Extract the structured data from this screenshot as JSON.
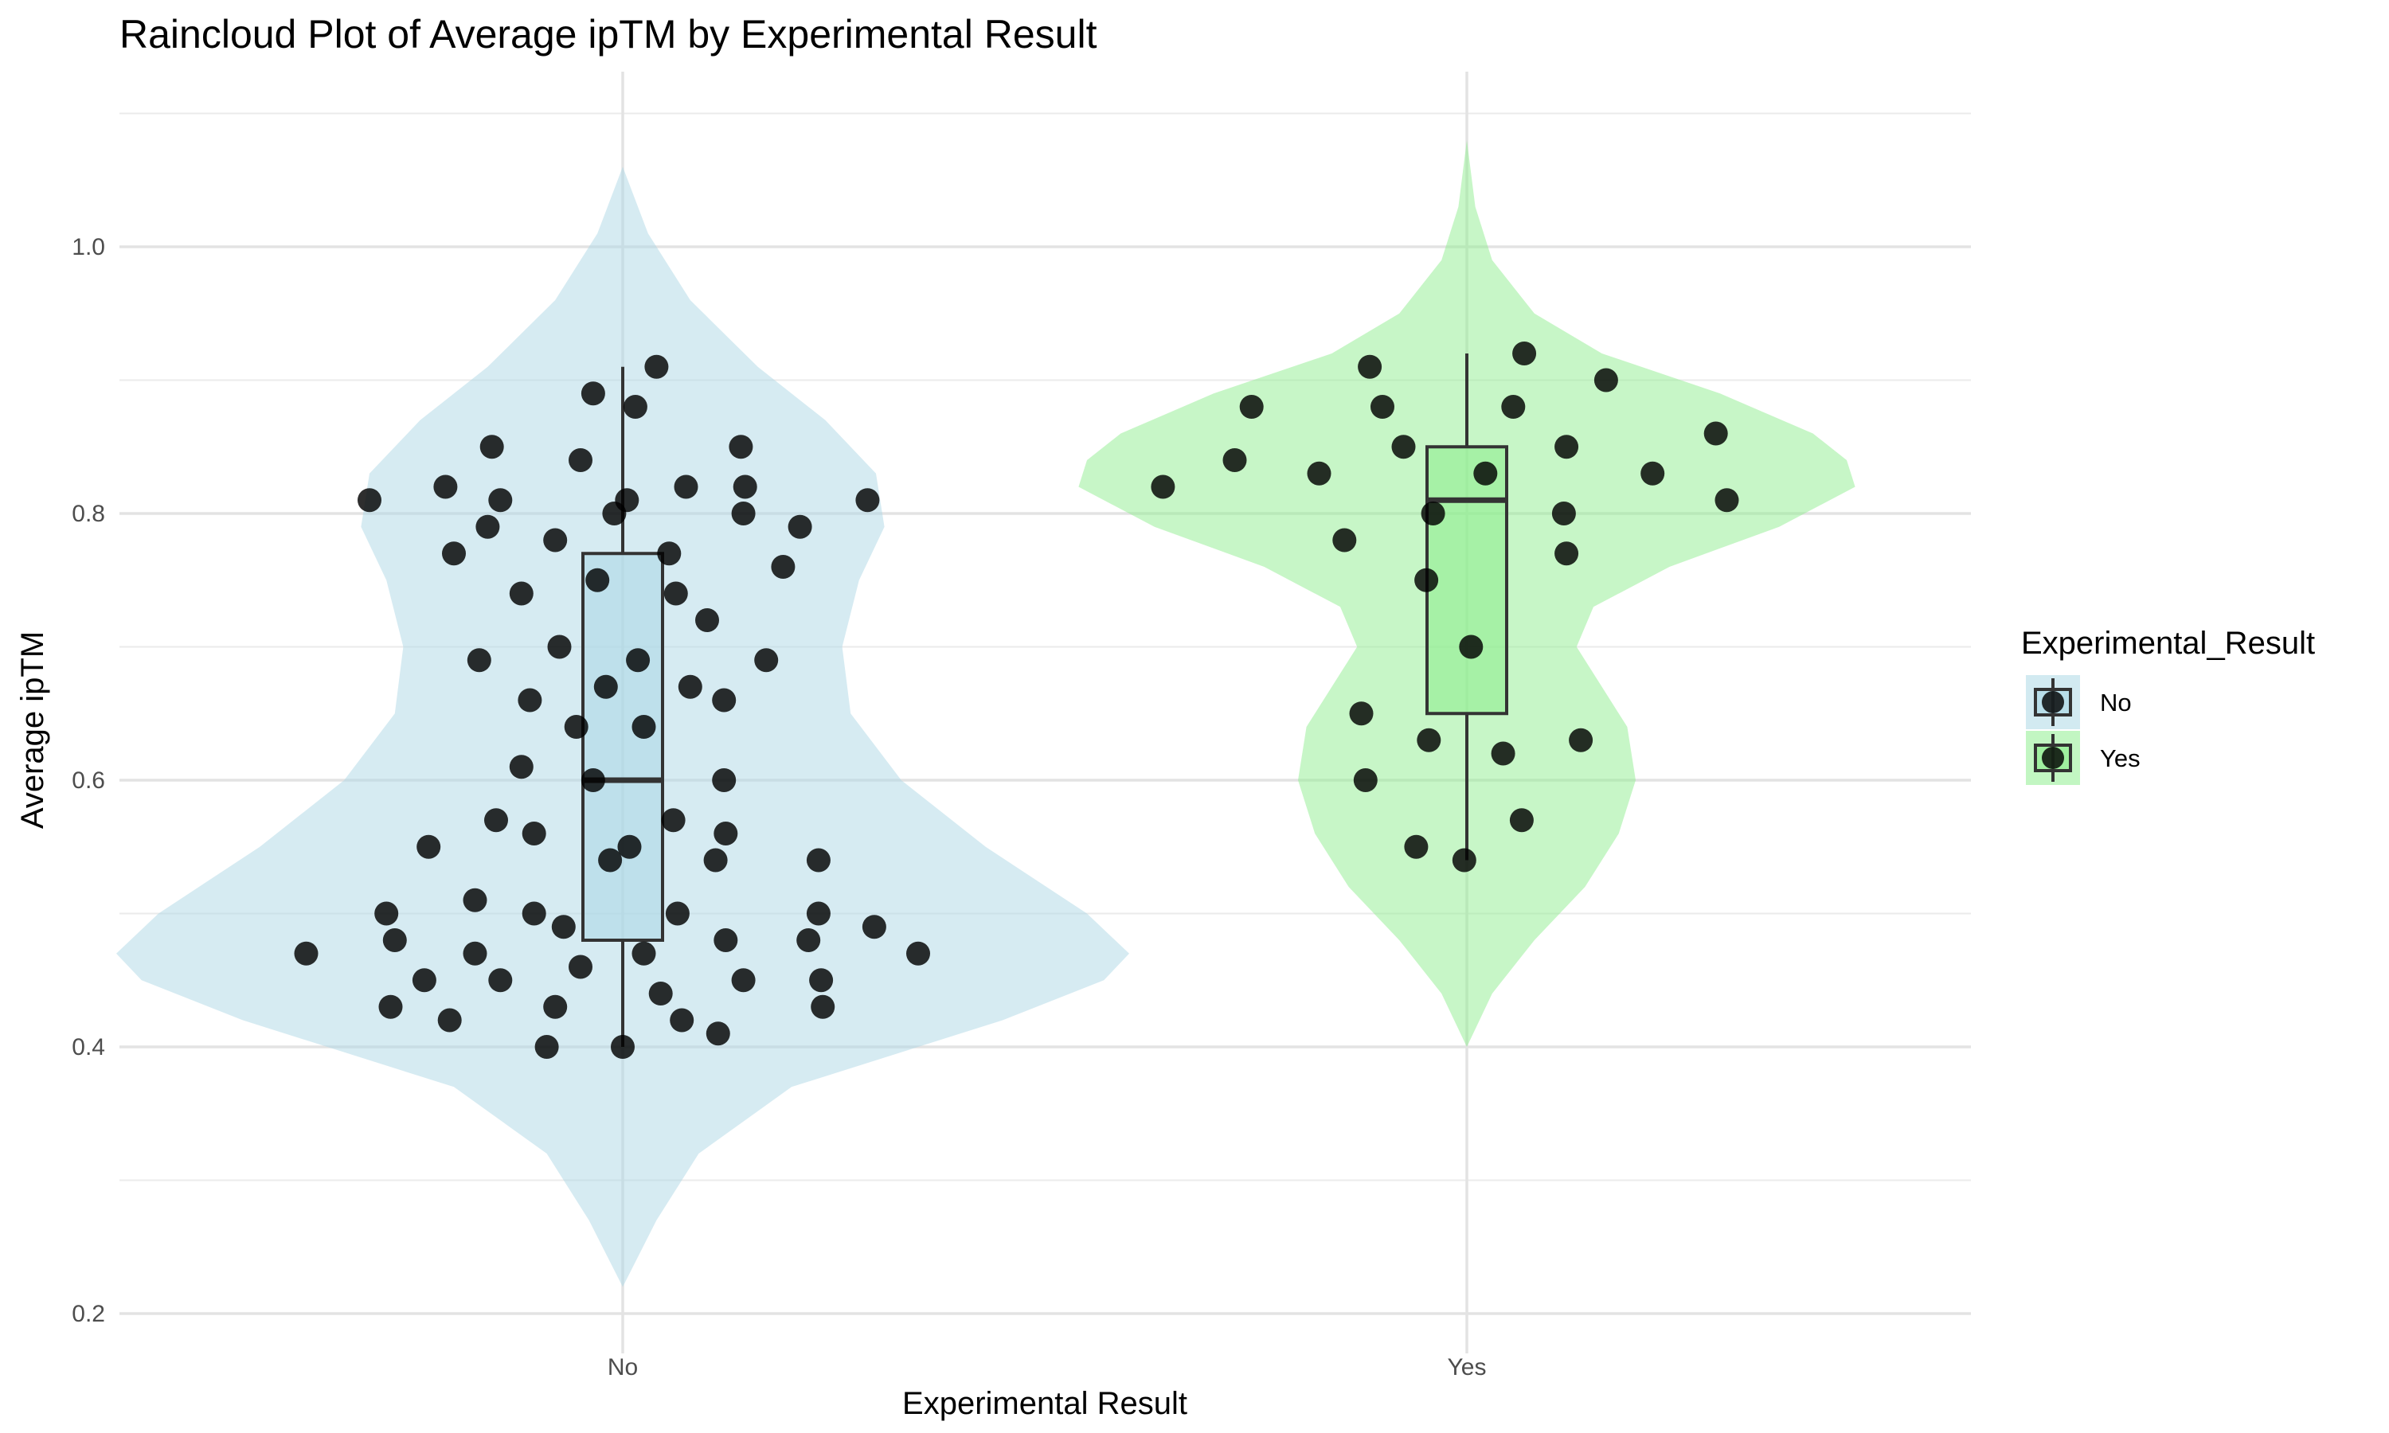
{
  "chart_data": {
    "type": "raincloud",
    "title": "Raincloud Plot of Average ipTM by Experimental Result",
    "xlabel": "Experimental Result",
    "ylabel": "Average ipTM",
    "categories": [
      "No",
      "Yes"
    ],
    "ylim": [
      0.2,
      1.12
    ],
    "yticks": [
      0.2,
      0.4,
      0.6,
      0.8,
      1.0
    ],
    "yticklabels": [
      "0.2",
      "0.4",
      "0.6",
      "0.8",
      "1.0"
    ],
    "grid": true,
    "legend": {
      "title": "Experimental_Result",
      "position": "right",
      "items": [
        {
          "label": "No",
          "color": "#add8e6"
        },
        {
          "label": "Yes",
          "color": "#90ee90"
        }
      ]
    },
    "groups": [
      {
        "name": "No",
        "color": "#add8e6",
        "box": {
          "min": 0.4,
          "q1": 0.48,
          "median": 0.6,
          "q3": 0.77,
          "max": 0.91
        },
        "violin": {
          "y": [
            0.22,
            0.27,
            0.32,
            0.37,
            0.42,
            0.45,
            0.47,
            0.5,
            0.55,
            0.6,
            0.65,
            0.7,
            0.75,
            0.79,
            0.83,
            0.87,
            0.91,
            0.96,
            1.01,
            1.06
          ],
          "width": [
            0.0,
            0.04,
            0.09,
            0.2,
            0.45,
            0.57,
            0.6,
            0.55,
            0.43,
            0.33,
            0.27,
            0.26,
            0.28,
            0.31,
            0.3,
            0.24,
            0.16,
            0.08,
            0.03,
            0.0
          ]
        },
        "points": [
          {
            "x": -0.375,
            "y": 0.47
          },
          {
            "x": -0.3,
            "y": 0.81
          },
          {
            "x": -0.28,
            "y": 0.5
          },
          {
            "x": -0.275,
            "y": 0.43
          },
          {
            "x": -0.27,
            "y": 0.48
          },
          {
            "x": -0.235,
            "y": 0.45
          },
          {
            "x": -0.23,
            "y": 0.55
          },
          {
            "x": -0.21,
            "y": 0.82
          },
          {
            "x": -0.205,
            "y": 0.42
          },
          {
            "x": -0.2,
            "y": 0.77
          },
          {
            "x": -0.175,
            "y": 0.47
          },
          {
            "x": -0.175,
            "y": 0.51
          },
          {
            "x": -0.17,
            "y": 0.69
          },
          {
            "x": -0.16,
            "y": 0.79
          },
          {
            "x": -0.155,
            "y": 0.85
          },
          {
            "x": -0.15,
            "y": 0.57
          },
          {
            "x": -0.145,
            "y": 0.81
          },
          {
            "x": -0.145,
            "y": 0.45
          },
          {
            "x": -0.12,
            "y": 0.74
          },
          {
            "x": -0.12,
            "y": 0.61
          },
          {
            "x": -0.11,
            "y": 0.66
          },
          {
            "x": -0.105,
            "y": 0.5
          },
          {
            "x": -0.105,
            "y": 0.56
          },
          {
            "x": -0.09,
            "y": 0.4
          },
          {
            "x": -0.08,
            "y": 0.43
          },
          {
            "x": -0.08,
            "y": 0.78
          },
          {
            "x": -0.075,
            "y": 0.7
          },
          {
            "x": -0.07,
            "y": 0.49
          },
          {
            "x": -0.055,
            "y": 0.64
          },
          {
            "x": -0.05,
            "y": 0.84
          },
          {
            "x": -0.05,
            "y": 0.46
          },
          {
            "x": -0.035,
            "y": 0.89
          },
          {
            "x": -0.035,
            "y": 0.6
          },
          {
            "x": -0.03,
            "y": 0.75
          },
          {
            "x": -0.02,
            "y": 0.67
          },
          {
            "x": -0.015,
            "y": 0.54
          },
          {
            "x": -0.01,
            "y": 0.8
          },
          {
            "x": 0.0,
            "y": 0.4
          },
          {
            "x": 0.005,
            "y": 0.81
          },
          {
            "x": 0.008,
            "y": 0.55
          },
          {
            "x": 0.015,
            "y": 0.88
          },
          {
            "x": 0.018,
            "y": 0.69
          },
          {
            "x": 0.025,
            "y": 0.64
          },
          {
            "x": 0.025,
            "y": 0.47
          },
          {
            "x": 0.04,
            "y": 0.91
          },
          {
            "x": 0.045,
            "y": 0.44
          },
          {
            "x": 0.055,
            "y": 0.77
          },
          {
            "x": 0.06,
            "y": 0.57
          },
          {
            "x": 0.063,
            "y": 0.74
          },
          {
            "x": 0.065,
            "y": 0.5
          },
          {
            "x": 0.07,
            "y": 0.42
          },
          {
            "x": 0.075,
            "y": 0.82
          },
          {
            "x": 0.08,
            "y": 0.67
          },
          {
            "x": 0.1,
            "y": 0.72
          },
          {
            "x": 0.11,
            "y": 0.54
          },
          {
            "x": 0.113,
            "y": 0.41
          },
          {
            "x": 0.12,
            "y": 0.66
          },
          {
            "x": 0.12,
            "y": 0.6
          },
          {
            "x": 0.122,
            "y": 0.56
          },
          {
            "x": 0.122,
            "y": 0.48
          },
          {
            "x": 0.14,
            "y": 0.85
          },
          {
            "x": 0.143,
            "y": 0.8
          },
          {
            "x": 0.143,
            "y": 0.45
          },
          {
            "x": 0.145,
            "y": 0.82
          },
          {
            "x": 0.17,
            "y": 0.69
          },
          {
            "x": 0.19,
            "y": 0.76
          },
          {
            "x": 0.21,
            "y": 0.79
          },
          {
            "x": 0.22,
            "y": 0.48
          },
          {
            "x": 0.232,
            "y": 0.54
          },
          {
            "x": 0.232,
            "y": 0.5
          },
          {
            "x": 0.235,
            "y": 0.45
          },
          {
            "x": 0.237,
            "y": 0.43
          },
          {
            "x": 0.29,
            "y": 0.81
          },
          {
            "x": 0.298,
            "y": 0.49
          },
          {
            "x": 0.35,
            "y": 0.47
          }
        ]
      },
      {
        "name": "Yes",
        "color": "#90ee90",
        "box": {
          "min": 0.54,
          "q1": 0.65,
          "median": 0.81,
          "q3": 0.85,
          "max": 0.92
        },
        "violin": {
          "y": [
            0.4,
            0.44,
            0.48,
            0.52,
            0.56,
            0.6,
            0.64,
            0.67,
            0.7,
            0.73,
            0.76,
            0.79,
            0.82,
            0.84,
            0.86,
            0.89,
            0.92,
            0.95,
            0.99,
            1.03,
            1.08
          ],
          "width": [
            0.0,
            0.03,
            0.08,
            0.14,
            0.18,
            0.2,
            0.19,
            0.16,
            0.13,
            0.15,
            0.24,
            0.37,
            0.46,
            0.45,
            0.41,
            0.3,
            0.16,
            0.08,
            0.03,
            0.01,
            0.0
          ]
        },
        "points": [
          {
            "x": -0.36,
            "y": 0.82
          },
          {
            "x": -0.275,
            "y": 0.84
          },
          {
            "x": -0.255,
            "y": 0.88
          },
          {
            "x": -0.175,
            "y": 0.83
          },
          {
            "x": -0.145,
            "y": 0.78
          },
          {
            "x": -0.125,
            "y": 0.65
          },
          {
            "x": -0.12,
            "y": 0.6
          },
          {
            "x": -0.115,
            "y": 0.91
          },
          {
            "x": -0.1,
            "y": 0.88
          },
          {
            "x": -0.075,
            "y": 0.85
          },
          {
            "x": -0.06,
            "y": 0.55
          },
          {
            "x": -0.048,
            "y": 0.75
          },
          {
            "x": -0.045,
            "y": 0.63
          },
          {
            "x": -0.04,
            "y": 0.8
          },
          {
            "x": -0.003,
            "y": 0.54
          },
          {
            "x": 0.005,
            "y": 0.7
          },
          {
            "x": 0.022,
            "y": 0.83
          },
          {
            "x": 0.043,
            "y": 0.62
          },
          {
            "x": 0.055,
            "y": 0.88
          },
          {
            "x": 0.065,
            "y": 0.57
          },
          {
            "x": 0.068,
            "y": 0.92
          },
          {
            "x": 0.115,
            "y": 0.8
          },
          {
            "x": 0.118,
            "y": 0.77
          },
          {
            "x": 0.118,
            "y": 0.85
          },
          {
            "x": 0.135,
            "y": 0.63
          },
          {
            "x": 0.165,
            "y": 0.9
          },
          {
            "x": 0.22,
            "y": 0.83
          },
          {
            "x": 0.295,
            "y": 0.86
          },
          {
            "x": 0.308,
            "y": 0.81
          }
        ]
      }
    ]
  }
}
